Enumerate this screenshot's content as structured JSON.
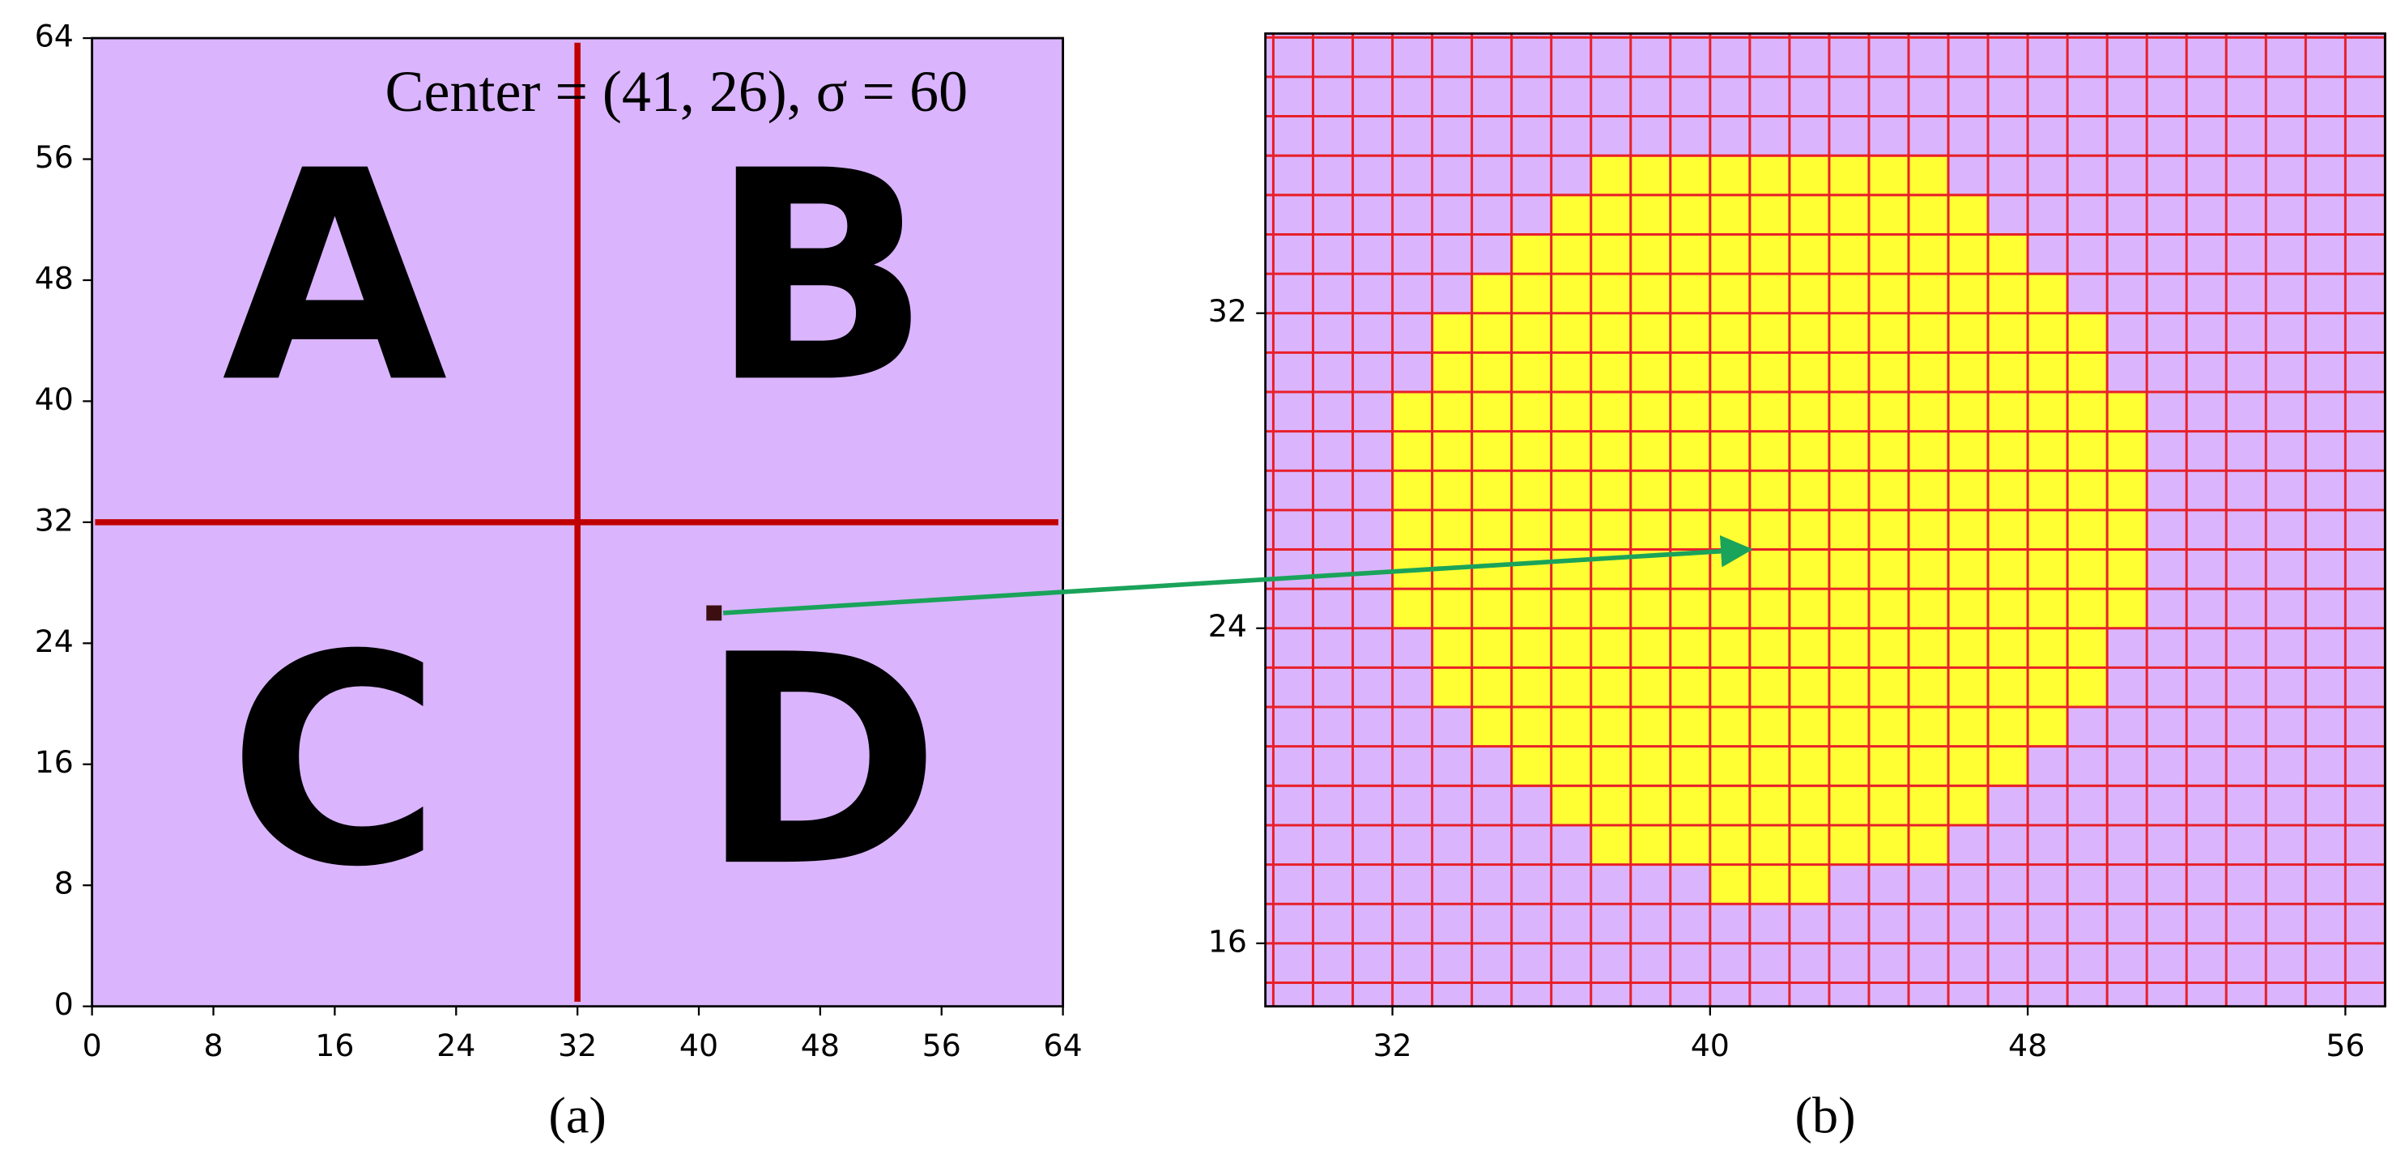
{
  "chart_data": [
    {
      "type": "quadrant",
      "title": "Center = (41, 26), σ = 60",
      "caption": "(a)",
      "xlim": [
        0,
        64
      ],
      "ylim": [
        0,
        64
      ],
      "xticks": [
        0,
        8,
        16,
        24,
        32,
        40,
        48,
        56,
        64
      ],
      "yticks": [
        0,
        8,
        16,
        24,
        32,
        40,
        48,
        56,
        64
      ],
      "background": "#dab5fe",
      "dividers": {
        "x": 32,
        "y": 32,
        "color": "#c00000"
      },
      "quadrant_labels": [
        "A",
        "B",
        "C",
        "D"
      ],
      "point": {
        "x": 41,
        "y": 26,
        "color": "#3b0f10",
        "arrow_color": "#1aa35a"
      }
    },
    {
      "type": "cell_grid",
      "caption": "(b)",
      "xlim": [
        28.8,
        57
      ],
      "ylim": [
        14.4,
        39.1
      ],
      "xticks": [
        32,
        40,
        48,
        56
      ],
      "yticks": [
        16,
        24,
        32
      ],
      "background": "#dab5fe",
      "grid": true,
      "grid_color": "#e8202a",
      "fill_color": "#ffff33",
      "filled_rows": [
        {
          "y": 35,
          "x_start": 37,
          "x_end": 45
        },
        {
          "y": 34,
          "x_start": 36,
          "x_end": 46
        },
        {
          "y": 33,
          "x_start": 35,
          "x_end": 47
        },
        {
          "y": 32,
          "x_start": 34,
          "x_end": 48
        },
        {
          "y": 31,
          "x_start": 33,
          "x_end": 49
        },
        {
          "y": 30,
          "x_start": 33,
          "x_end": 49
        },
        {
          "y": 29,
          "x_start": 32,
          "x_end": 50
        },
        {
          "y": 28,
          "x_start": 32,
          "x_end": 50
        },
        {
          "y": 27,
          "x_start": 32,
          "x_end": 50
        },
        {
          "y": 26,
          "x_start": 32,
          "x_end": 50
        },
        {
          "y": 25,
          "x_start": 32,
          "x_end": 50
        },
        {
          "y": 24,
          "x_start": 32,
          "x_end": 50
        },
        {
          "y": 23,
          "x_start": 33,
          "x_end": 49
        },
        {
          "y": 22,
          "x_start": 33,
          "x_end": 49
        },
        {
          "y": 21,
          "x_start": 34,
          "x_end": 48
        },
        {
          "y": 20,
          "x_start": 35,
          "x_end": 47
        },
        {
          "y": 19,
          "x_start": 36,
          "x_end": 46
        },
        {
          "y": 18,
          "x_start": 37,
          "x_end": 45
        },
        {
          "y": 17,
          "x_start": 40,
          "x_end": 42
        }
      ]
    }
  ]
}
